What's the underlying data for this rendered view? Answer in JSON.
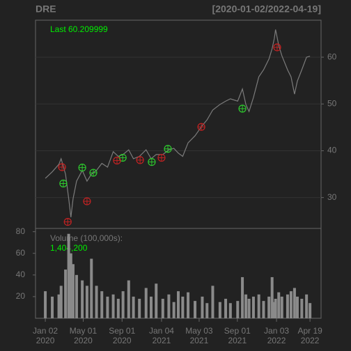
{
  "chart_data": {
    "type": "line",
    "title": "DRE",
    "subtitle": "[2020-01-02/2022-04-19]",
    "last_label": "Last",
    "last_value": 60.209999,
    "volume_label": "Volume (100,000s):",
    "volume_last": "1,404,200",
    "x": [
      "2020-01-02",
      "2020-01-24",
      "2020-02-14",
      "2020-02-21",
      "2020-03-06",
      "2020-03-16",
      "2020-03-23",
      "2020-03-30",
      "2020-04-10",
      "2020-04-28",
      "2020-05-13",
      "2020-05-27",
      "2020-06-12",
      "2020-06-29",
      "2020-07-17",
      "2020-08-04",
      "2020-08-20",
      "2020-09-04",
      "2020-09-22",
      "2020-10-07",
      "2020-10-26",
      "2020-11-16",
      "2020-12-02",
      "2020-12-18",
      "2021-01-08",
      "2021-01-27",
      "2021-02-12",
      "2021-02-26",
      "2021-03-12",
      "2021-03-29",
      "2021-04-20",
      "2021-05-13",
      "2021-05-28",
      "2021-06-15",
      "2021-07-08",
      "2021-07-26",
      "2021-08-10",
      "2021-09-02",
      "2021-09-17",
      "2021-09-28",
      "2021-10-08",
      "2021-10-22",
      "2021-11-08",
      "2021-11-23",
      "2021-12-10",
      "2021-12-20",
      "2021-12-27",
      "2021-12-31",
      "2022-01-10",
      "2022-01-20",
      "2022-02-07",
      "2022-02-18",
      "2022-03-01",
      "2022-03-10",
      "2022-03-24",
      "2022-04-08",
      "2022-04-19"
    ],
    "xlim": [
      "2019-12-02",
      "2022-05-24"
    ],
    "xticks": [
      {
        "value": "2020-01-02",
        "label": "Jan 02",
        "year": "2020"
      },
      {
        "value": "2020-05-01",
        "label": "May 01",
        "year": "2020"
      },
      {
        "value": "2020-09-01",
        "label": "Sep 01",
        "year": "2020"
      },
      {
        "value": "2021-01-04",
        "label": "Jan 04",
        "year": "2021"
      },
      {
        "value": "2021-05-03",
        "label": "May 03",
        "year": "2021"
      },
      {
        "value": "2021-09-01",
        "label": "Sep 01",
        "year": "2021"
      },
      {
        "value": "2022-01-03",
        "label": "Jan 03",
        "year": "2022"
      },
      {
        "value": "2022-04-19",
        "label": "Apr 19",
        "year": "2022"
      }
    ],
    "price": {
      "color": "#7c7c7c",
      "values": [
        34.1,
        35.5,
        37.1,
        38.3,
        35.0,
        29.8,
        25.8,
        29.8,
        33.5,
        35.8,
        33.5,
        35.0,
        35.8,
        37.3,
        36.5,
        39.8,
        38.8,
        39.2,
        40.2,
        38.3,
        38.8,
        40.2,
        38.3,
        39.2,
        39.2,
        40.2,
        40.5,
        39.5,
        38.8,
        41.7,
        43.2,
        45.4,
        46.6,
        48.7,
        49.9,
        50.6,
        51.1,
        50.6,
        53.2,
        49.9,
        48.4,
        51.4,
        55.8,
        57.3,
        59.6,
        61.8,
        64.0,
        65.9,
        62.5,
        60.3,
        57.3,
        55.8,
        52.1,
        54.9,
        57.3,
        60.0,
        60.209999
      ]
    },
    "ylim": [
      23.4,
      67.9
    ],
    "yticks": [
      30,
      40,
      50,
      60
    ],
    "grid": true,
    "volume": {
      "color": "#8a8a8a",
      "values": [
        25,
        20,
        22,
        30,
        45,
        78,
        60,
        50,
        40,
        35,
        30,
        55,
        30,
        25,
        20,
        22,
        18,
        25,
        35,
        20,
        18,
        28,
        20,
        32,
        18,
        22,
        15,
        25,
        20,
        24,
        16,
        20,
        14,
        30,
        15,
        18,
        14,
        16,
        38,
        22,
        18,
        20,
        22,
        16,
        20,
        38,
        15,
        18,
        24,
        20,
        22,
        25,
        28,
        20,
        18,
        22,
        14.042
      ]
    },
    "vlim": [
      0,
      83
    ],
    "vticks": [
      20,
      40,
      60,
      80
    ],
    "signals": [
      {
        "color": "#2ecc2e",
        "x": [
          "2020-02-28",
          "2020-04-28",
          "2020-06-02",
          "2020-09-03",
          "2020-12-04",
          "2021-01-24",
          "2021-09-17"
        ],
        "values": [
          33.0,
          36.4,
          35.3,
          38.5,
          37.6,
          40.4,
          49.0
        ]
      },
      {
        "color": "#c42222",
        "x": [
          "2020-02-24",
          "2020-03-13",
          "2020-05-13",
          "2020-08-16",
          "2020-10-28",
          "2021-01-04",
          "2021-05-10",
          "2022-01-05"
        ],
        "values": [
          36.5,
          24.8,
          29.2,
          37.9,
          38.0,
          38.5,
          45.1,
          62.1
        ]
      }
    ]
  }
}
